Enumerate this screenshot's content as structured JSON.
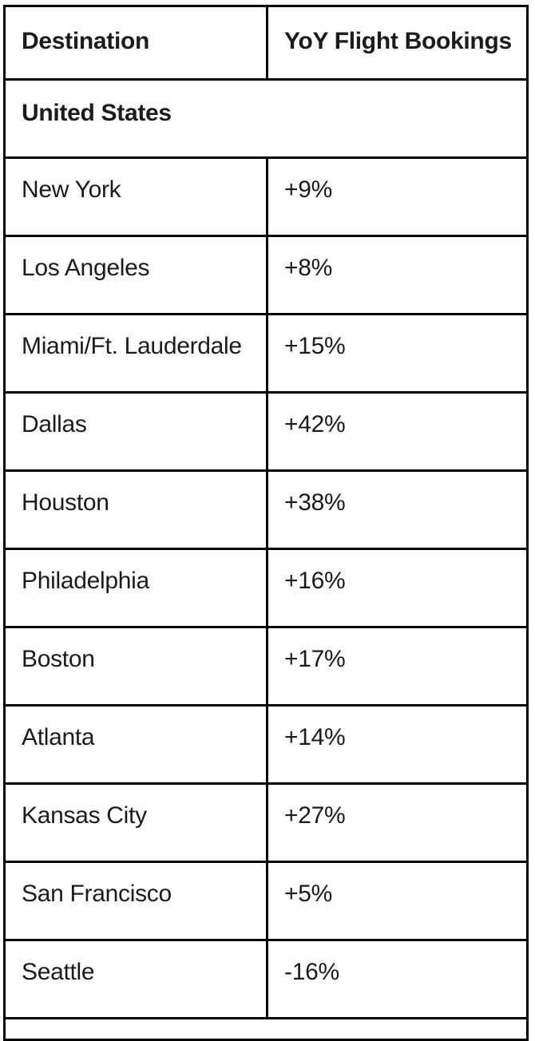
{
  "chart_data": {
    "type": "table",
    "title": "",
    "columns": [
      "Destination",
      "YoY Flight Bookings"
    ],
    "section_header": "United States",
    "rows": [
      [
        "New York",
        "+9%"
      ],
      [
        "Los Angeles",
        "+8%"
      ],
      [
        "Miami/Ft. Lauderdale",
        "+15%"
      ],
      [
        "Dallas",
        "+42%"
      ],
      [
        "Houston",
        "+38%"
      ],
      [
        "Philadelphia",
        "+16%"
      ],
      [
        "Boston",
        "+17%"
      ],
      [
        "Atlanta",
        "+14%"
      ],
      [
        "Kansas City",
        "+27%"
      ],
      [
        "San Francisco",
        "+5%"
      ],
      [
        "Seattle",
        "-16%"
      ]
    ],
    "yoy_values_percent": [
      9,
      8,
      15,
      42,
      38,
      16,
      17,
      14,
      27,
      5,
      -16
    ]
  },
  "table": {
    "header": {
      "destination_label": "Destination",
      "yoy_label": "YoY Flight Bookings"
    },
    "section": {
      "label": "United States"
    },
    "rows": [
      {
        "destination": "New York",
        "yoy": "+9%"
      },
      {
        "destination": "Los Angeles",
        "yoy": "+8%"
      },
      {
        "destination": "Miami/Ft. Lauderdale",
        "yoy": "+15%"
      },
      {
        "destination": "Dallas",
        "yoy": "+42%"
      },
      {
        "destination": "Houston",
        "yoy": "+38%"
      },
      {
        "destination": "Philadelphia",
        "yoy": "+16%"
      },
      {
        "destination": "Boston",
        "yoy": "+17%"
      },
      {
        "destination": "Atlanta",
        "yoy": "+14%"
      },
      {
        "destination": "Kansas City",
        "yoy": "+27%"
      },
      {
        "destination": "San Francisco",
        "yoy": "+5%"
      },
      {
        "destination": "Seattle",
        "yoy": "-16%"
      }
    ],
    "colors": {
      "border": "#000000",
      "text": "#1b1b1b",
      "background": "#ffffff"
    }
  }
}
